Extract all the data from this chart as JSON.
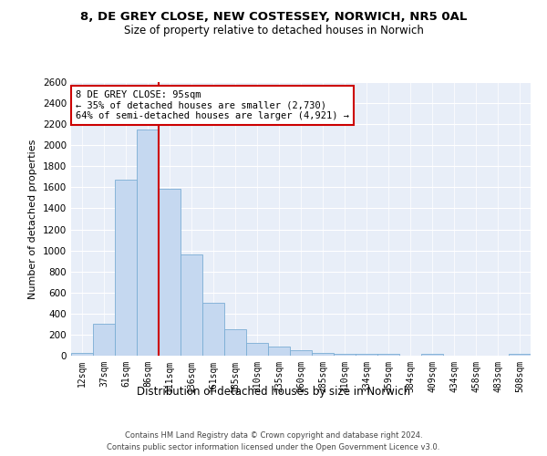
{
  "title_line1": "8, DE GREY CLOSE, NEW COSTESSEY, NORWICH, NR5 0AL",
  "title_line2": "Size of property relative to detached houses in Norwich",
  "xlabel": "Distribution of detached houses by size in Norwich",
  "ylabel": "Number of detached properties",
  "categories": [
    "12sqm",
    "37sqm",
    "61sqm",
    "86sqm",
    "111sqm",
    "136sqm",
    "161sqm",
    "185sqm",
    "210sqm",
    "235sqm",
    "260sqm",
    "285sqm",
    "310sqm",
    "334sqm",
    "359sqm",
    "384sqm",
    "409sqm",
    "434sqm",
    "458sqm",
    "483sqm",
    "508sqm"
  ],
  "values": [
    25,
    300,
    1670,
    2150,
    1590,
    960,
    500,
    250,
    120,
    90,
    50,
    30,
    20,
    15,
    20,
    0,
    15,
    0,
    0,
    0,
    20
  ],
  "bar_color": "#c5d8f0",
  "bar_edge_color": "#7aadd4",
  "vline_index": 3.5,
  "vline_color": "#cc0000",
  "annotation_text": "8 DE GREY CLOSE: 95sqm\n← 35% of detached houses are smaller (2,730)\n64% of semi-detached houses are larger (4,921) →",
  "annotation_box_color": "#ffffff",
  "annotation_box_edge": "#cc0000",
  "ylim": [
    0,
    2600
  ],
  "yticks": [
    0,
    200,
    400,
    600,
    800,
    1000,
    1200,
    1400,
    1600,
    1800,
    2000,
    2200,
    2400,
    2600
  ],
  "footer1": "Contains HM Land Registry data © Crown copyright and database right 2024.",
  "footer2": "Contains public sector information licensed under the Open Government Licence v3.0.",
  "plot_bg_color": "#e8eef8"
}
